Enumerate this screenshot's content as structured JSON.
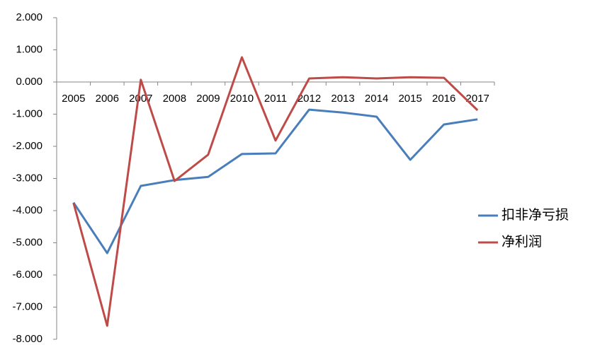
{
  "chart_data": {
    "type": "line",
    "categories": [
      "2005",
      "2006",
      "2007",
      "2008",
      "2009",
      "2010",
      "2011",
      "2012",
      "2013",
      "2014",
      "2015",
      "2016",
      "2017"
    ],
    "series": [
      {
        "name": "扣非净亏损",
        "color": "#4a7ebb",
        "values": [
          -3.75,
          -5.32,
          -3.23,
          -3.05,
          -2.95,
          -2.24,
          -2.22,
          -0.86,
          -0.95,
          -1.08,
          -2.42,
          -1.32,
          -1.16
        ]
      },
      {
        "name": "净利润",
        "color": "#be4b48",
        "values": [
          -3.76,
          -7.58,
          0.07,
          -3.08,
          -2.26,
          0.77,
          -1.82,
          0.11,
          0.15,
          0.11,
          0.15,
          0.13,
          -0.88
        ]
      }
    ],
    "ylim": [
      -8,
      2
    ],
    "yticks": [
      {
        "value": 2,
        "label": "2.000"
      },
      {
        "value": 1,
        "label": "1.000"
      },
      {
        "value": 0,
        "label": "0.000"
      },
      {
        "value": -1,
        "label": "-1.000"
      },
      {
        "value": -2,
        "label": "-2.000"
      },
      {
        "value": -3,
        "label": "-3.000"
      },
      {
        "value": -4,
        "label": "-4.000"
      },
      {
        "value": -5,
        "label": "-5.000"
      },
      {
        "value": -6,
        "label": "-6.000"
      },
      {
        "value": -7,
        "label": "-7.000"
      },
      {
        "value": -8,
        "label": "-8.000"
      }
    ],
    "legend": "right"
  }
}
